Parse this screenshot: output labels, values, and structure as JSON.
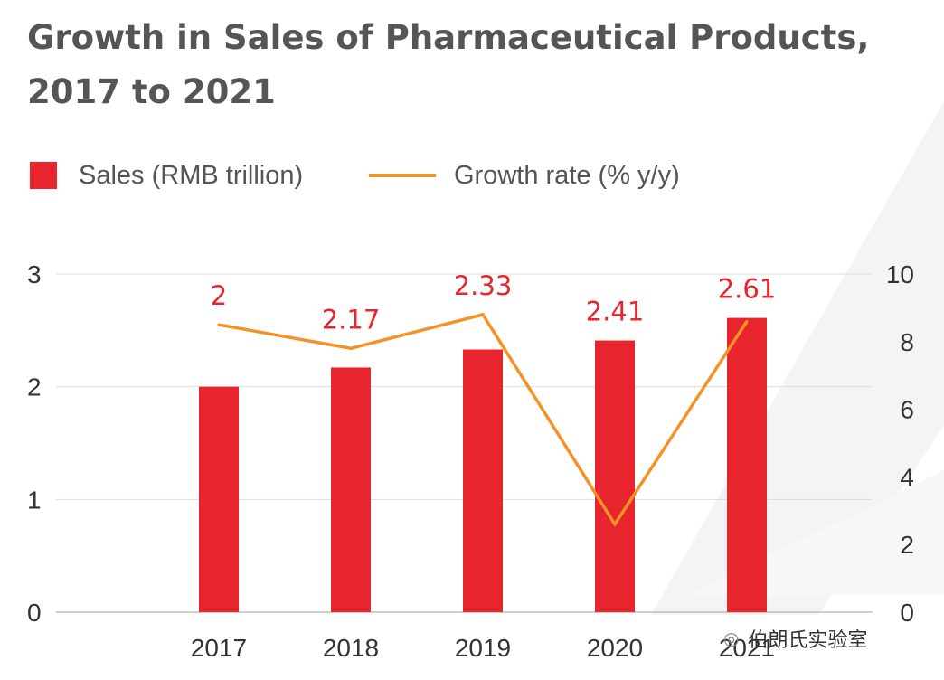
{
  "chart_data": {
    "type": "bar",
    "title": "Growth in Sales of Pharmaceutical Products, 2017 to 2021",
    "categories": [
      "2017",
      "2018",
      "2019",
      "2020",
      "2021"
    ],
    "series": [
      {
        "name": "Sales (RMB trillion)",
        "type": "bar",
        "axis": "left",
        "values": [
          2,
          2.17,
          2.33,
          2.41,
          2.61
        ],
        "labels": [
          "2",
          "2.17",
          "2.33",
          "2.41",
          "2.61"
        ],
        "color": "#e8242c"
      },
      {
        "name": "Growth rate (% y/y)",
        "type": "line",
        "axis": "right",
        "values": [
          8.5,
          7.8,
          8.8,
          2.6,
          8.6
        ],
        "color": "#f39325"
      }
    ],
    "left_axis": {
      "ylim": [
        0,
        3
      ],
      "ticks": [
        "0",
        "1",
        "2",
        "3"
      ]
    },
    "right_axis": {
      "ylim": [
        0,
        10
      ],
      "ticks": [
        "0",
        "2",
        "4",
        "6",
        "8",
        "10"
      ]
    },
    "xlabel": "",
    "ylabel": "",
    "grid": true,
    "legend_position": "top-left"
  },
  "watermark": {
    "text": "伯朗氏实验室",
    "icon": "wechat-icon"
  }
}
